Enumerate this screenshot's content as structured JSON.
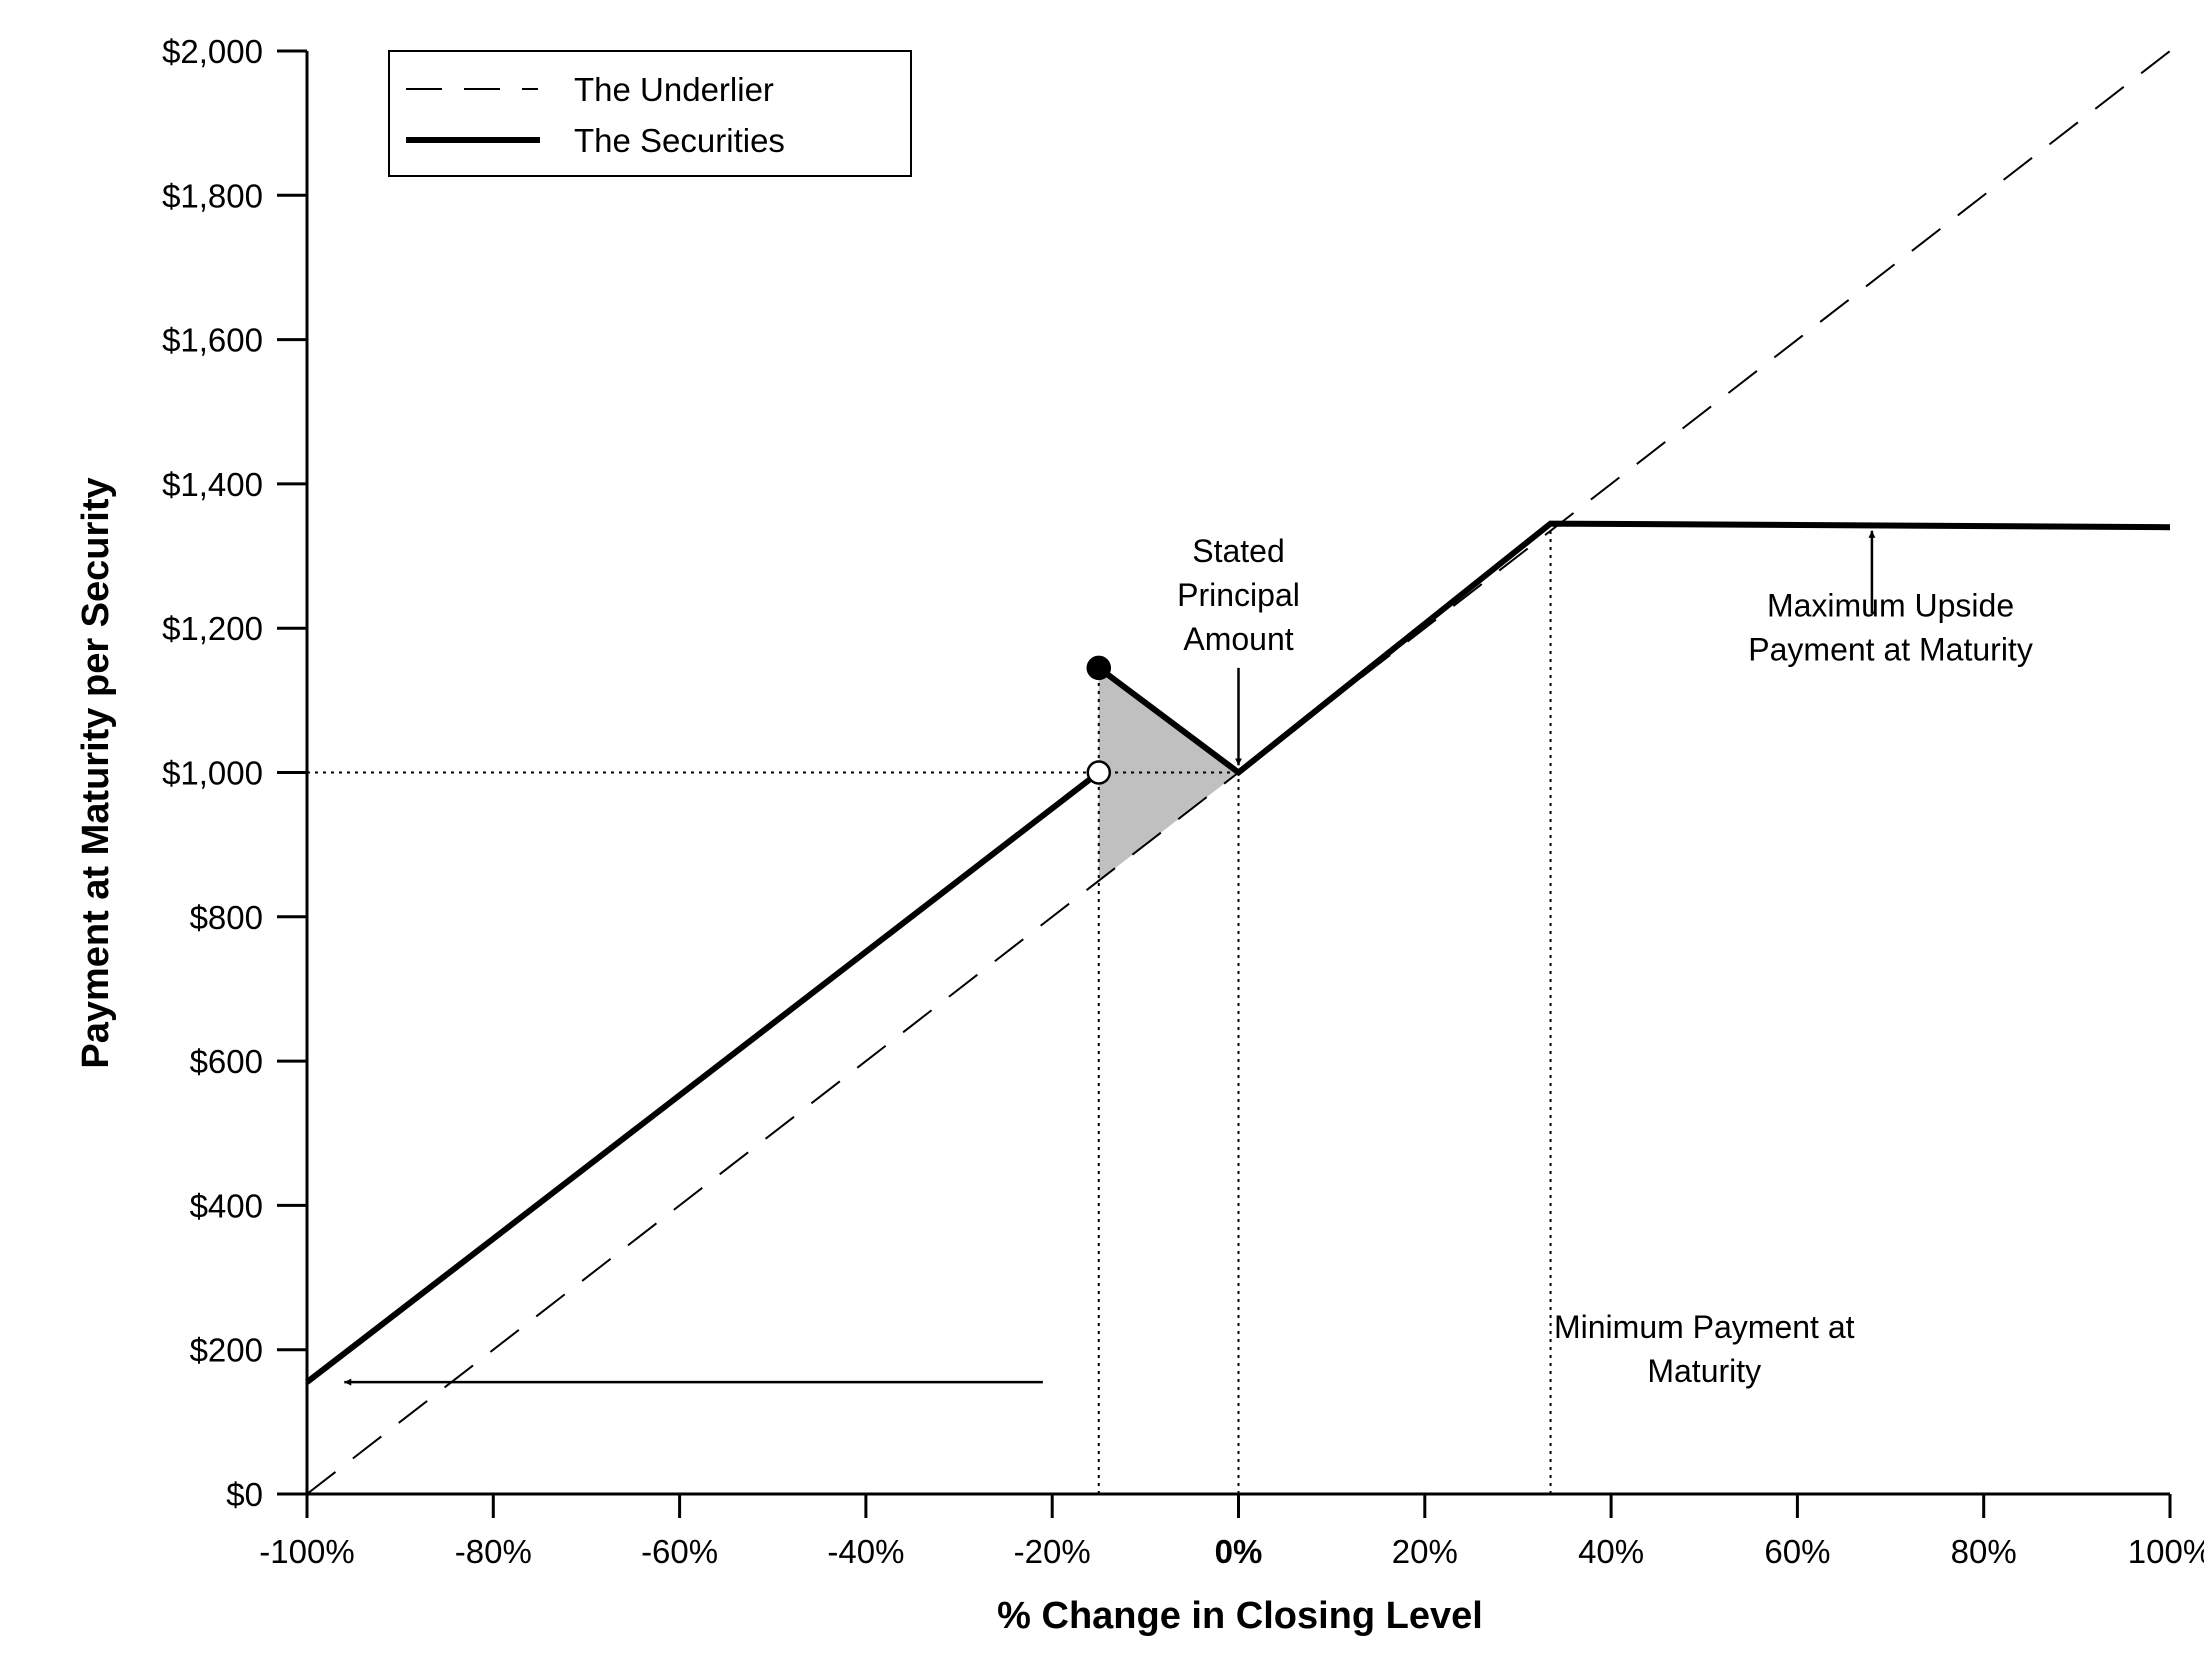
{
  "chart_data": {
    "type": "line",
    "xlabel": "% Change in Closing Level",
    "ylabel": "Payment at Maturity per Security",
    "xlim": [
      -100,
      100
    ],
    "ylim": [
      0,
      2000
    ],
    "x_ticks": [
      -100,
      -80,
      -60,
      -40,
      -20,
      0,
      20,
      40,
      60,
      80,
      100
    ],
    "x_tick_labels": [
      "-100%",
      "-80%",
      "-60%",
      "-40%",
      "-20%",
      "0%",
      "20%",
      "40%",
      "60%",
      "80%",
      "100%"
    ],
    "y_ticks": [
      0,
      200,
      400,
      600,
      800,
      1000,
      1200,
      1400,
      1600,
      1800,
      2000
    ],
    "y_tick_labels": [
      "$0",
      "$200",
      "$400",
      "$600",
      "$800",
      "$1,000",
      "$1,200",
      "$1,400",
      "$1,600",
      "$1,800",
      "$2,000"
    ],
    "grid": false,
    "legend_position": "top-left",
    "series": [
      {
        "name": "The Underlier",
        "style": "dashed",
        "points": [
          [
            -100,
            0
          ],
          [
            100,
            2000
          ]
        ]
      },
      {
        "name": "The Securities",
        "style": "solid-thick",
        "segments": [
          [
            [
              -100,
              155
            ],
            [
              -15,
              1000
            ]
          ],
          [
            [
              -15,
              1145
            ],
            [
              0,
              1000
            ],
            [
              33.5,
              1345
            ],
            [
              100,
              1340
            ]
          ]
        ]
      }
    ],
    "markers": [
      {
        "type": "filled-circle",
        "x": -15,
        "y": 1145
      },
      {
        "type": "open-circle",
        "x": -15,
        "y": 1000
      }
    ],
    "shaded_region": {
      "color": "#c0c0c0",
      "points": [
        [
          -15,
          1145
        ],
        [
          0,
          1000
        ],
        [
          -15,
          850
        ]
      ]
    },
    "reference_lines": [
      {
        "type": "horizontal",
        "y": 1000,
        "from_x": -100,
        "to_x": 0
      },
      {
        "type": "vertical",
        "x": -15,
        "from_y": 0,
        "to_y": 1145
      },
      {
        "type": "vertical",
        "x": 0,
        "from_y": 0,
        "to_y": 1000
      },
      {
        "type": "vertical",
        "x": 33.5,
        "from_y": 0,
        "to_y": 1345
      }
    ],
    "annotations": [
      {
        "lines": [
          "Stated",
          "Principal",
          "Amount"
        ],
        "text_anchor": [
          0,
          1170
        ],
        "arrow_from": [
          0,
          1145
        ],
        "arrow_to": [
          0,
          1010
        ]
      },
      {
        "lines": [
          "Maximum Upside",
          "Payment at Maturity"
        ],
        "text_anchor": [
          70,
          1155
        ],
        "arrow_from": [
          68,
          1220
        ],
        "arrow_to": [
          68,
          1335
        ]
      },
      {
        "lines": [
          "Minimum Payment at",
          "Maturity"
        ],
        "text_anchor": [
          50,
          155
        ],
        "arrow_from": [
          -21,
          155
        ],
        "arrow_to": [
          -96,
          155
        ]
      }
    ]
  }
}
